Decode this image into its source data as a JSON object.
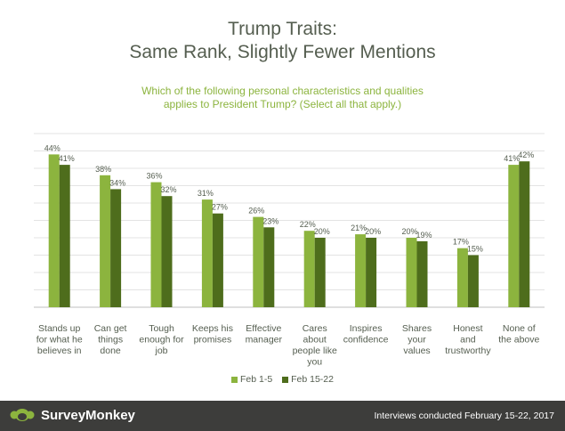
{
  "title_line1": "Trump Traits:",
  "title_line2": "Same Rank, Slightly Fewer Mentions",
  "subtitle_line1": "Which of the following personal characteristics and qualities",
  "subtitle_line2": "applies to President Trump? (Select all that apply.)",
  "colors": {
    "series1": "#8cb43e",
    "series2": "#4e6d1c",
    "footer": "#3d3d3b",
    "title": "#555e50"
  },
  "chart_data": {
    "type": "bar",
    "categories": [
      [
        "Stands up",
        "for what he",
        "believes in"
      ],
      [
        "Can get",
        "things",
        "done"
      ],
      [
        "Tough",
        "enough for",
        "job"
      ],
      [
        "Keeps his",
        "promises"
      ],
      [
        "Effective",
        "manager"
      ],
      [
        "Cares",
        "about",
        "people like",
        "you"
      ],
      [
        "Inspires",
        "confidence"
      ],
      [
        "Shares",
        "your",
        "values"
      ],
      [
        "Honest",
        "and",
        "trustworthy"
      ],
      [
        "None of",
        "the above"
      ]
    ],
    "series": [
      {
        "name": "Feb 1-5",
        "values": [
          44,
          38,
          36,
          31,
          26,
          22,
          21,
          20,
          17,
          41
        ]
      },
      {
        "name": "Feb 15-22",
        "values": [
          41,
          34,
          32,
          27,
          23,
          20,
          20,
          19,
          15,
          42
        ]
      }
    ],
    "value_suffix": "%",
    "ylim": [
      0,
      50
    ],
    "grid": true,
    "legend": "bottom"
  },
  "footer": {
    "logo_text": "SurveyMonkey",
    "logo_icon": "surveymonkey-logo-icon",
    "note": "Interviews conducted February 15-22, 2017"
  }
}
